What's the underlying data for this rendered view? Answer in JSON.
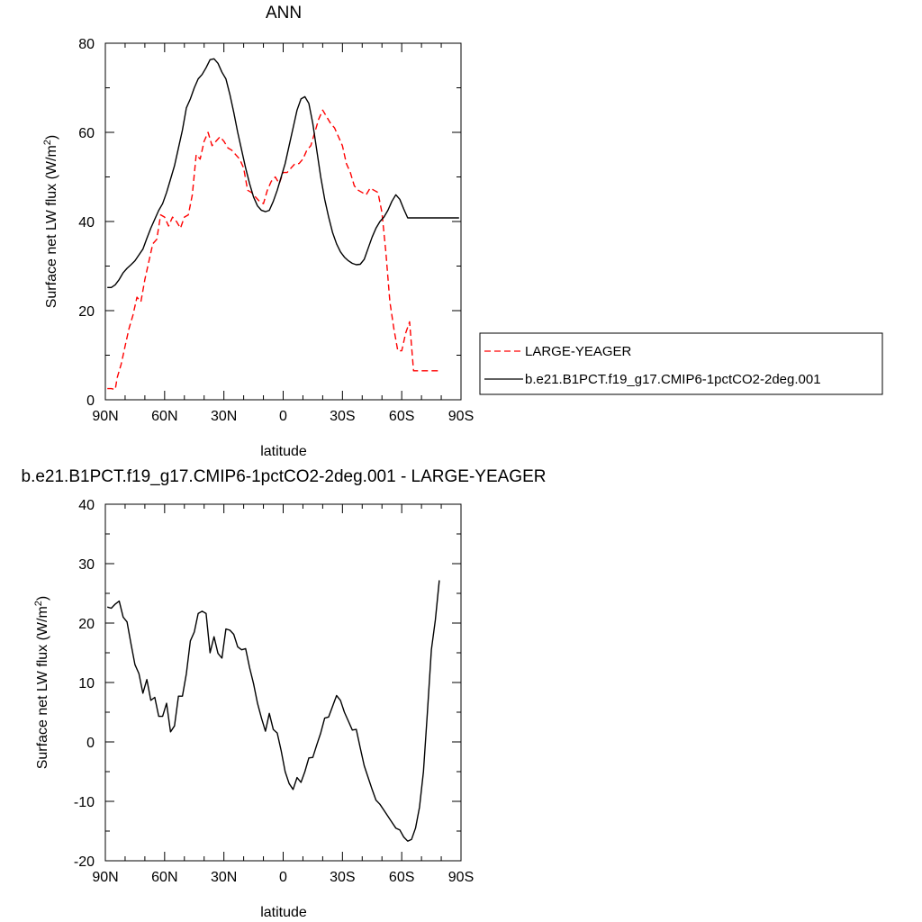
{
  "chart_data": [
    {
      "type": "line",
      "title": "ANN",
      "xlabel": "latitude",
      "ylabel_main": "Surface net LW flux (W/m",
      "ylabel_sup": "2",
      "ylabel_close": ")",
      "xlim": [
        90,
        -90
      ],
      "ylim": [
        0,
        80
      ],
      "xticks": [
        90,
        60,
        30,
        0,
        -30,
        -60,
        -90
      ],
      "xtick_labels": [
        "90N",
        "60N",
        "30N",
        "0",
        "30S",
        "60S",
        "90S"
      ],
      "yticks": [
        0,
        20,
        40,
        60,
        80
      ],
      "ytick_labels": [
        "0",
        "20",
        "40",
        "60",
        "80"
      ],
      "legend_position": "right",
      "series": [
        {
          "name": "LARGE-YEAGER",
          "color": "#ff0000",
          "dash": "dashed",
          "x": [
            89,
            87,
            85,
            84,
            82,
            80,
            78,
            76,
            74,
            72,
            70,
            68,
            66,
            64,
            62,
            60,
            58,
            56,
            54,
            52,
            50,
            48,
            46,
            44,
            42,
            40,
            38,
            36,
            34,
            32,
            30,
            28,
            26,
            24,
            22,
            20,
            18,
            16,
            14,
            12,
            10,
            8,
            6,
            4,
            2,
            0,
            -2,
            -4,
            -6,
            -8,
            -10,
            -12,
            -14,
            -16,
            -18,
            -20,
            -22,
            -24,
            -26,
            -28,
            -30,
            -32,
            -34,
            -36,
            -38,
            -40,
            -42,
            -44,
            -46,
            -48,
            -50,
            -52,
            -54,
            -56,
            -58,
            -60,
            -62,
            -64,
            -66,
            -68,
            -70,
            -72,
            -74,
            -76,
            -78,
            -79
          ],
          "y": [
            2.5,
            2.5,
            2.3,
            5,
            8,
            12,
            16,
            19,
            23,
            22,
            27,
            31,
            35,
            36,
            41.5,
            41,
            39,
            41,
            40,
            38.5,
            41,
            41.5,
            46,
            55,
            54,
            58,
            60,
            57,
            58,
            59,
            58,
            56.5,
            56,
            55,
            54,
            52,
            47,
            46.5,
            45.5,
            44.5,
            44,
            47,
            49,
            50,
            48.5,
            51,
            51,
            52,
            53,
            53,
            54,
            56,
            57,
            60,
            63,
            65,
            63.5,
            62,
            61,
            59,
            57,
            53,
            51,
            48,
            47,
            46.5,
            46,
            47.5,
            47,
            46.5,
            42,
            33,
            22,
            16,
            11,
            11,
            15,
            17.5,
            6.5,
            6.5,
            6.5,
            6.5,
            6.5,
            6.5,
            6.5,
            6.5
          ]
        },
        {
          "name": "b.e21.B1PCT.f19_g17.CMIP6-1pctCO2-2deg.001",
          "color": "#000000",
          "dash": "solid",
          "x": [
            89,
            87,
            85,
            83,
            81,
            79,
            77,
            75,
            73,
            71,
            69,
            67,
            65,
            63,
            61,
            59,
            57,
            55,
            53,
            51,
            49,
            47,
            45,
            43,
            41,
            39,
            37,
            35,
            33,
            31,
            29,
            27,
            25,
            23,
            21,
            19,
            17,
            15,
            13,
            11,
            9,
            7,
            5,
            3,
            1,
            -1,
            -3,
            -5,
            -7,
            -9,
            -11,
            -13,
            -15,
            -17,
            -19,
            -21,
            -23,
            -25,
            -27,
            -29,
            -31,
            -33,
            -35,
            -37,
            -39,
            -41,
            -43,
            -45,
            -47,
            -49,
            -51,
            -53,
            -55,
            -57,
            -59,
            -61,
            -63,
            -65,
            -67,
            -69,
            -71,
            -73,
            -75,
            -77,
            -79,
            -81,
            -83,
            -85,
            -87,
            -89
          ],
          "y": [
            25.2,
            25.2,
            25.8,
            27,
            28.5,
            29.5,
            30.3,
            31.2,
            32.5,
            33.8,
            36.2,
            38.5,
            40.5,
            42.5,
            44,
            46.5,
            49.5,
            52.5,
            56.5,
            60.5,
            65.5,
            67.5,
            70,
            72,
            73,
            74.5,
            76.3,
            76.5,
            75.5,
            73.5,
            72,
            68.5,
            64.5,
            60,
            56,
            52,
            48.5,
            45.5,
            43.5,
            42.5,
            42.2,
            42.5,
            44.5,
            47,
            50,
            53,
            57,
            61,
            65,
            67.5,
            68,
            66.5,
            62,
            56,
            50,
            45,
            41,
            37.5,
            35,
            33.2,
            32,
            31.2,
            30.6,
            30.3,
            30.4,
            31.5,
            34,
            36.5,
            38.5,
            40,
            41,
            42.5,
            44.5,
            46,
            45,
            42.8,
            40.8,
            40.8,
            40.8,
            40.8,
            40.8,
            40.8,
            40.8,
            40.8,
            40.8,
            40.8,
            40.8,
            40.8,
            40.8,
            40.8
          ]
        }
      ]
    },
    {
      "type": "line",
      "title": "b.e21.B1PCT.f19_g17.CMIP6-1pctCO2-2deg.001 - LARGE-YEAGER",
      "xlabel": "latitude",
      "ylabel_main": "Surface net LW flux (W/m",
      "ylabel_sup": "2",
      "ylabel_close": ")",
      "xlim": [
        90,
        -90
      ],
      "ylim": [
        -20,
        40
      ],
      "xticks": [
        90,
        60,
        30,
        0,
        -30,
        -60,
        -90
      ],
      "xtick_labels": [
        "90N",
        "60N",
        "30N",
        "0",
        "30S",
        "60S",
        "90S"
      ],
      "yticks": [
        -20,
        -10,
        0,
        10,
        20,
        30,
        40
      ],
      "ytick_labels": [
        "-20",
        "-10",
        "0",
        "10",
        "20",
        "30",
        "40"
      ],
      "series": [
        {
          "color": "#000000",
          "dash": "solid",
          "x": [
            89,
            87,
            85,
            83,
            81,
            79,
            77,
            75,
            73,
            71,
            69,
            67,
            65,
            63,
            61,
            59,
            57,
            55,
            53,
            51,
            49,
            47,
            45,
            43,
            41,
            39,
            37,
            35,
            33,
            31,
            29,
            27,
            25,
            23,
            21,
            19,
            17,
            15,
            13,
            11,
            9,
            7,
            5,
            3,
            1,
            -1,
            -3,
            -5,
            -7,
            -9,
            -11,
            -13,
            -15,
            -17,
            -19,
            -21,
            -23,
            -25,
            -27,
            -29,
            -31,
            -33,
            -35,
            -37,
            -39,
            -41,
            -43,
            -45,
            -47,
            -49,
            -51,
            -53,
            -55,
            -57,
            -59,
            -61,
            -63,
            -65,
            -67,
            -69,
            -71,
            -73,
            -75,
            -77,
            -79
          ],
          "y": [
            22.7,
            22.5,
            23.2,
            23.7,
            21,
            20.2,
            16.5,
            13,
            11.5,
            8.2,
            10.5,
            7,
            7.5,
            4.3,
            4.3,
            6.5,
            1.7,
            2.7,
            7.7,
            7.7,
            11.5,
            17,
            18.5,
            21.6,
            22,
            21.6,
            15,
            17.7,
            14.9,
            14.1,
            19,
            18.8,
            18.1,
            16,
            15.5,
            15.7,
            12.5,
            9.8,
            6.5,
            4,
            1.8,
            4.8,
            2.1,
            1.5,
            -1.5,
            -5,
            -7,
            -8,
            -6,
            -6.8,
            -5,
            -2.7,
            -2.6,
            -0.5,
            1.5,
            4,
            4.2,
            6,
            7.8,
            7,
            5,
            3.5,
            2,
            2.1,
            -1,
            -4,
            -6,
            -8,
            -9.8,
            -10.5,
            -11.5,
            -12.5,
            -13.5,
            -14.5,
            -14.8,
            -16,
            -16.7,
            -16.4,
            -14.5,
            -11,
            -5,
            5,
            15.5,
            20.5,
            27.2
          ]
        }
      ]
    }
  ]
}
